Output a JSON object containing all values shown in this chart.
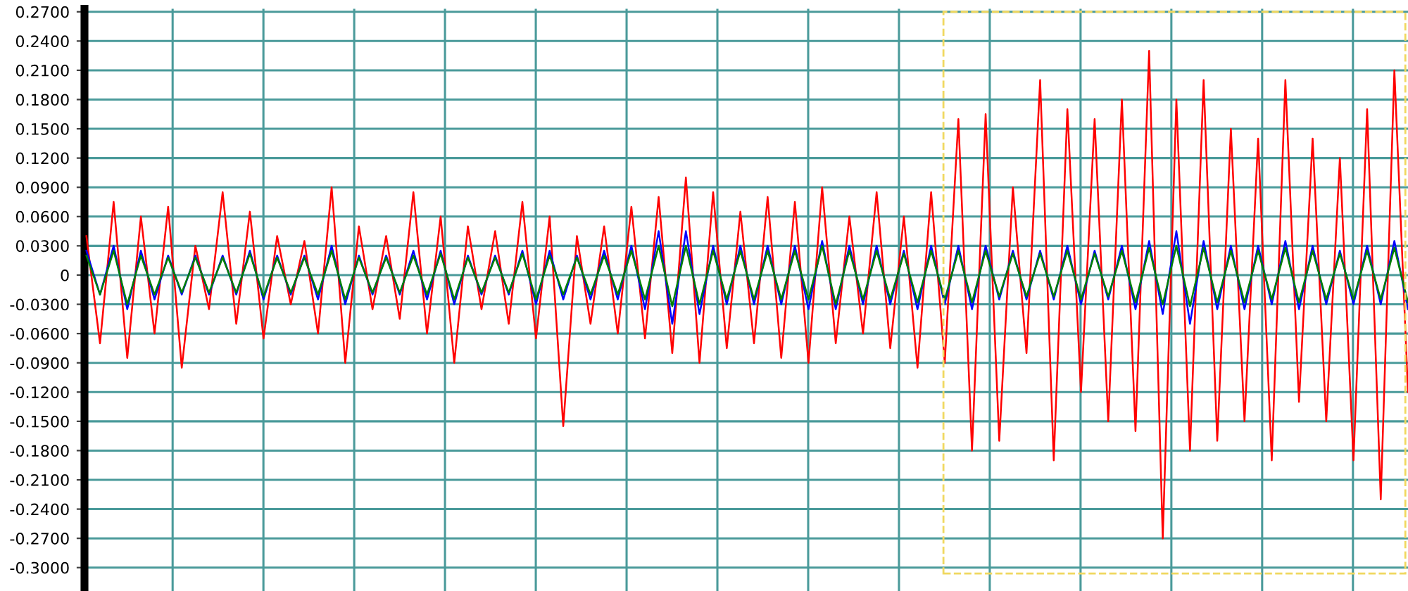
{
  "chart_data": {
    "type": "line",
    "categories": [
      null,
      null,
      null,
      null,
      null,
      null,
      null,
      null,
      null,
      null,
      null,
      null,
      null,
      null,
      null,
      null,
      null,
      null,
      null,
      null,
      null,
      null,
      null,
      null,
      null,
      null,
      null,
      null,
      null,
      null,
      null,
      null,
      null,
      null,
      null,
      null,
      null,
      null,
      null,
      null,
      null,
      null,
      null,
      null,
      null,
      null,
      null,
      null,
      null,
      null,
      null,
      null,
      null,
      null,
      null,
      null,
      null,
      null,
      null,
      null,
      null,
      null,
      null,
      null,
      null,
      null,
      null,
      null,
      null,
      null,
      null,
      null,
      null,
      null,
      null,
      null,
      null,
      null,
      null,
      null,
      null,
      null,
      null,
      null,
      null,
      null,
      null,
      null,
      null,
      null,
      null,
      null,
      null,
      null,
      null,
      null,
      null,
      null
    ],
    "series": [
      {
        "color": "#ff0000",
        "values": [
          0.04,
          -0.07,
          0.075,
          -0.085,
          0.06,
          -0.06,
          0.07,
          -0.095,
          0.03,
          -0.035,
          0.085,
          -0.05,
          0.065,
          -0.065,
          0.04,
          -0.03,
          0.035,
          -0.06,
          0.09,
          -0.09,
          0.05,
          -0.035,
          0.04,
          -0.045,
          0.085,
          -0.06,
          0.06,
          -0.09,
          0.05,
          -0.035,
          0.045,
          -0.05,
          0.075,
          -0.065,
          0.06,
          -0.155,
          0.04,
          -0.05,
          0.05,
          -0.06,
          0.07,
          -0.065,
          0.08,
          -0.08,
          0.1,
          -0.09,
          0.085,
          -0.075,
          0.065,
          -0.07,
          0.08,
          -0.085,
          0.075,
          -0.09,
          0.09,
          -0.07,
          0.06,
          -0.06,
          0.085,
          -0.075,
          0.06,
          -0.095,
          0.085,
          -0.09,
          0.16,
          -0.18,
          0.165,
          -0.17,
          0.09,
          -0.08,
          0.2,
          -0.19,
          0.17,
          -0.12,
          0.16,
          -0.15,
          0.18,
          -0.16,
          0.23,
          -0.27,
          0.18,
          -0.18,
          0.2,
          -0.17,
          0.15,
          -0.15,
          0.14,
          -0.19,
          0.2,
          -0.13,
          0.14,
          -0.15,
          0.12,
          -0.19,
          0.17,
          -0.23,
          0.21,
          -0.12
        ]
      },
      {
        "color": "#0000ff",
        "values": [
          0.025,
          -0.02,
          0.03,
          -0.035,
          0.025,
          -0.025,
          0.02,
          -0.02,
          0.02,
          -0.02,
          0.02,
          -0.02,
          0.025,
          -0.025,
          0.02,
          -0.02,
          0.02,
          -0.025,
          0.03,
          -0.03,
          0.02,
          -0.02,
          0.02,
          -0.02,
          0.025,
          -0.025,
          0.025,
          -0.03,
          0.02,
          -0.02,
          0.02,
          -0.02,
          0.025,
          -0.03,
          0.025,
          -0.025,
          0.02,
          -0.025,
          0.025,
          -0.025,
          0.03,
          -0.035,
          0.045,
          -0.05,
          0.045,
          -0.04,
          0.03,
          -0.03,
          0.03,
          -0.03,
          0.03,
          -0.03,
          0.03,
          -0.035,
          0.035,
          -0.035,
          0.03,
          -0.03,
          0.03,
          -0.03,
          0.025,
          -0.035,
          0.03,
          -0.03,
          0.03,
          -0.035,
          0.03,
          -0.025,
          0.025,
          -0.025,
          0.025,
          -0.025,
          0.03,
          -0.03,
          0.025,
          -0.025,
          0.03,
          -0.035,
          0.035,
          -0.04,
          0.045,
          -0.05,
          0.035,
          -0.035,
          0.03,
          -0.035,
          0.03,
          -0.03,
          0.035,
          -0.035,
          0.03,
          -0.03,
          0.025,
          -0.03,
          0.03,
          -0.03,
          0.035,
          -0.035
        ]
      },
      {
        "color": "#008000",
        "values": [
          0.02,
          -0.02,
          0.025,
          -0.03,
          0.02,
          -0.02,
          0.018,
          -0.018,
          0.018,
          -0.018,
          0.018,
          -0.018,
          0.022,
          -0.022,
          0.018,
          -0.018,
          0.018,
          -0.02,
          0.025,
          -0.025,
          0.018,
          -0.018,
          0.018,
          -0.018,
          0.02,
          -0.02,
          0.022,
          -0.025,
          0.018,
          -0.018,
          0.018,
          -0.018,
          0.022,
          -0.025,
          0.02,
          -0.02,
          0.018,
          -0.02,
          0.02,
          -0.02,
          0.025,
          -0.025,
          0.03,
          -0.032,
          0.03,
          -0.03,
          0.025,
          -0.025,
          0.025,
          -0.025,
          0.025,
          -0.025,
          0.025,
          -0.025,
          0.03,
          -0.03,
          0.025,
          -0.025,
          0.025,
          -0.025,
          0.022,
          -0.028,
          0.025,
          -0.025,
          0.025,
          -0.028,
          0.025,
          -0.022,
          0.022,
          -0.022,
          0.022,
          -0.022,
          0.025,
          -0.025,
          0.022,
          -0.022,
          0.025,
          -0.028,
          0.028,
          -0.03,
          0.03,
          -0.032,
          0.028,
          -0.028,
          0.025,
          -0.028,
          0.025,
          -0.025,
          0.028,
          -0.028,
          0.025,
          -0.025,
          0.022,
          -0.025,
          0.025,
          -0.025,
          0.028,
          -0.028
        ]
      }
    ],
    "ylim": [
      -0.324,
      0.273
    ],
    "yticks": [
      {
        "value": 0.27,
        "label": "0.2700"
      },
      {
        "value": 0.24,
        "label": "0.2400"
      },
      {
        "value": 0.21,
        "label": "0.2100"
      },
      {
        "value": 0.18,
        "label": "0.1800"
      },
      {
        "value": 0.15,
        "label": "0.1500"
      },
      {
        "value": 0.12,
        "label": "0.1200"
      },
      {
        "value": 0.09,
        "label": "0.0900"
      },
      {
        "value": 0.06,
        "label": "0.0600"
      },
      {
        "value": 0.03,
        "label": "0.0300"
      },
      {
        "value": 0,
        "label": "0"
      },
      {
        "value": -0.03,
        "label": "-0.0300"
      },
      {
        "value": -0.06,
        "label": "-0.0600"
      },
      {
        "value": -0.09,
        "label": "-0.0900"
      },
      {
        "value": -0.12,
        "label": "-0.1200"
      },
      {
        "value": -0.15,
        "label": "-0.1500"
      },
      {
        "value": -0.18,
        "label": "-0.1800"
      },
      {
        "value": -0.21,
        "label": "-0.2100"
      },
      {
        "value": -0.24,
        "label": "-0.2400"
      },
      {
        "value": -0.27,
        "label": "-0.2700"
      },
      {
        "value": -0.3,
        "label": "-0.3000"
      }
    ],
    "grid": true
  }
}
